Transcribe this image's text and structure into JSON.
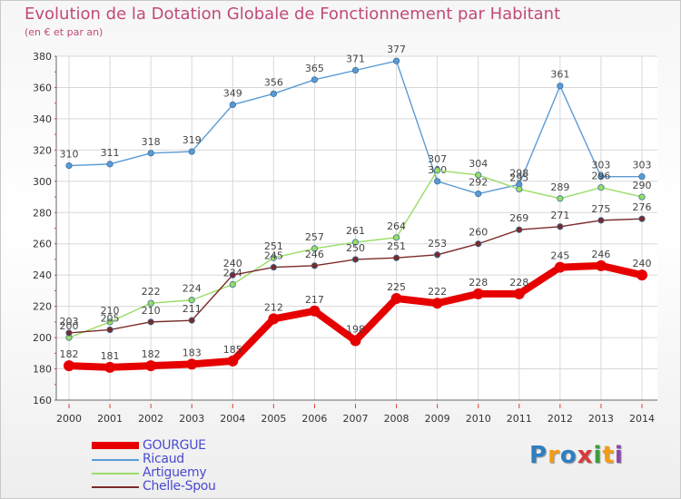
{
  "chart_data": {
    "type": "line",
    "title": "Evolution de la Dotation Globale de Fonctionnement par Habitant",
    "subtitle": "(en € et par an)",
    "x": [
      "2000",
      "2001",
      "2002",
      "2003",
      "2004",
      "2005",
      "2006",
      "2007",
      "2008",
      "2009",
      "2010",
      "2011",
      "2012",
      "2013",
      "2014"
    ],
    "ylim": [
      160,
      380
    ],
    "yticks": [
      160,
      180,
      200,
      220,
      240,
      260,
      280,
      300,
      320,
      340,
      360,
      380
    ],
    "grid": true,
    "legend_position": "bottom-left",
    "series": [
      {
        "name": "GOURGUE",
        "color": "#e60000",
        "values": [
          182,
          181,
          182,
          183,
          185,
          212,
          217,
          198,
          225,
          222,
          228,
          228,
          245,
          246,
          240
        ],
        "emphasis": true
      },
      {
        "name": "Ricaud",
        "color": "#5a9bd5",
        "values": [
          310,
          311,
          318,
          319,
          349,
          356,
          365,
          371,
          377,
          300,
          292,
          298,
          361,
          303,
          303
        ]
      },
      {
        "name": "Artiguemy",
        "color": "#99dd66",
        "values": [
          200,
          210,
          222,
          224,
          234,
          251,
          257,
          261,
          264,
          307,
          304,
          295,
          289,
          296,
          290
        ]
      },
      {
        "name": "Chelle-Spou",
        "color": "#7a2a2a",
        "values": [
          203,
          205,
          210,
          211,
          240,
          245,
          246,
          250,
          251,
          253,
          260,
          269,
          271,
          275,
          276
        ]
      }
    ]
  },
  "logo": {
    "text": "Proxiti",
    "colors": [
      "#2e7fc1",
      "#f39c12",
      "#2e7fc1",
      "#d63a3a",
      "#3a9c3a",
      "#f39c12",
      "#8e44ad"
    ]
  }
}
